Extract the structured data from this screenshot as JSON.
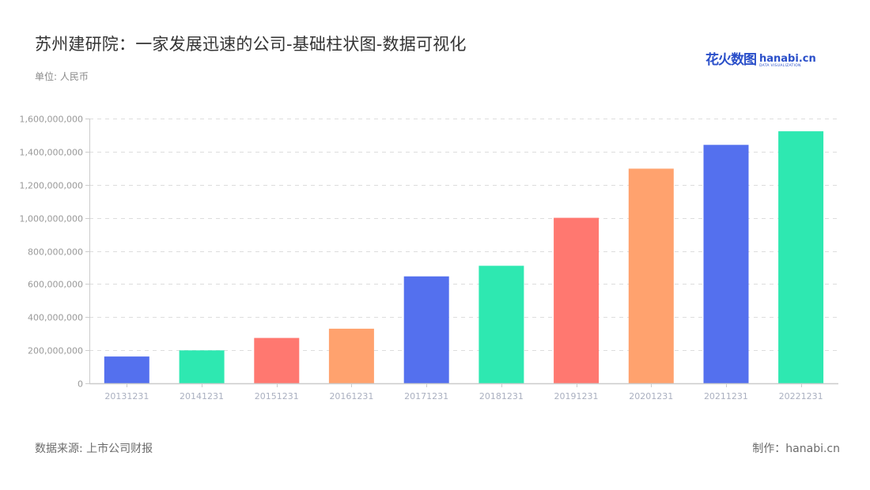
{
  "header": {
    "title": "苏州建研院：一家发展迅速的公司-基础柱状图-数据可视化",
    "unit": "单位: 人民币"
  },
  "logo": {
    "cn": "花火数图",
    "en": "hanabi.cn",
    "tagline": "DATA VISUALIZATION"
  },
  "footer": {
    "source": "数据来源: 上市公司财报",
    "credit": "制作：hanabi.cn"
  },
  "colors": {
    "palette": [
      "#5470ee",
      "#2ee8b1",
      "#ff7870",
      "#ffa26e"
    ],
    "axis": "#cccccc",
    "grid": "#dddddd",
    "tick_label": "#999999",
    "category_label": "#aab0c0"
  },
  "chart_data": {
    "type": "bar",
    "title": "苏州建研院：一家发展迅速的公司-基础柱状图-数据可视化",
    "subtitle": "单位: 人民币",
    "xlabel": "",
    "ylabel": "",
    "categories": [
      "20131231",
      "20141231",
      "20151231",
      "20161231",
      "20171231",
      "20181231",
      "20191231",
      "20201231",
      "20211231",
      "20221231"
    ],
    "values": [
      162000000,
      199000000,
      274000000,
      330000000,
      646000000,
      710000000,
      1000000000,
      1297000000,
      1441000000,
      1523000000
    ],
    "bar_colors": [
      "#5470ee",
      "#2ee8b1",
      "#ff7870",
      "#ffa26e",
      "#5470ee",
      "#2ee8b1",
      "#ff7870",
      "#ffa26e",
      "#5470ee",
      "#2ee8b1"
    ],
    "ylim": [
      0,
      1600000000
    ],
    "yticks": [
      0,
      200000000,
      400000000,
      600000000,
      800000000,
      1000000000,
      1200000000,
      1400000000,
      1600000000
    ],
    "ytick_labels": [
      "0",
      "200,000,000",
      "400,000,000",
      "600,000,000",
      "800,000,000",
      "1,000,000,000",
      "1,200,000,000",
      "1,400,000,000",
      "1,600,000,000"
    ],
    "grid": true,
    "legend": null
  }
}
